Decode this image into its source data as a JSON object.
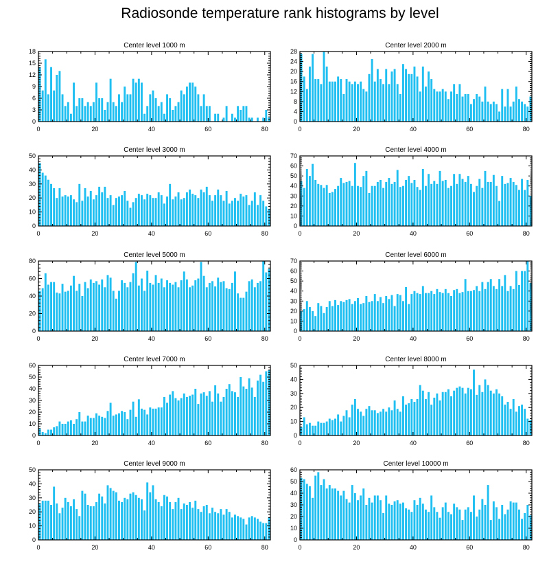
{
  "title": "Radiosonde temperature rank histograms by level",
  "colors": {
    "bar": "#1fbff2",
    "bar_edge": "#0e9fd6",
    "axis": "#000000"
  },
  "chart_data": [
    {
      "type": "bar",
      "title": "Center level 1000 m",
      "xlim": [
        0,
        82
      ],
      "ylim": [
        0,
        18
      ],
      "xticks": [
        0,
        20,
        40,
        60,
        80
      ],
      "yticks": [
        0,
        3,
        6,
        9,
        12,
        15,
        18
      ],
      "values": [
        14,
        8,
        16,
        7,
        14,
        8,
        12,
        13,
        7,
        4,
        5,
        2,
        10,
        4,
        6,
        6,
        4,
        5,
        4,
        5,
        10,
        6,
        6,
        3,
        5,
        11,
        5,
        4,
        7,
        5,
        9,
        7,
        7,
        11,
        10,
        11,
        10,
        2,
        4,
        7,
        8,
        6,
        4,
        5,
        2,
        7,
        6,
        3,
        4,
        5,
        8,
        7,
        9,
        10,
        10,
        9,
        7,
        4,
        7,
        4,
        4,
        0,
        2,
        2,
        0,
        1,
        4,
        0,
        2,
        1,
        4,
        3,
        4,
        4,
        1,
        1,
        0,
        1,
        0,
        1,
        3,
        1
      ]
    },
    {
      "type": "bar",
      "title": "Center level 2000 m",
      "xlim": [
        0,
        82
      ],
      "ylim": [
        0,
        28
      ],
      "xticks": [
        0,
        20,
        40,
        60,
        80
      ],
      "yticks": [
        0,
        4,
        8,
        12,
        16,
        20,
        24,
        28
      ],
      "values": [
        27,
        18,
        13,
        22,
        27,
        17,
        17,
        15,
        28,
        22,
        16,
        16,
        16,
        18,
        17,
        11,
        17,
        16,
        15,
        16,
        15,
        16,
        13,
        12,
        19,
        25,
        16,
        21,
        17,
        15,
        21,
        15,
        20,
        21,
        15,
        11,
        23,
        21,
        19,
        19,
        22,
        18,
        12,
        22,
        14,
        20,
        17,
        13,
        12,
        12,
        13,
        12,
        9,
        12,
        15,
        11,
        15,
        10,
        11,
        11,
        7,
        9,
        11,
        10,
        8,
        14,
        8,
        7,
        8,
        7,
        4,
        13,
        6,
        13,
        6,
        8,
        14,
        9,
        8,
        7,
        6,
        10
      ]
    },
    {
      "type": "bar",
      "title": "Center level 3000 m",
      "xlim": [
        0,
        82
      ],
      "ylim": [
        0,
        50
      ],
      "xticks": [
        0,
        20,
        40,
        60,
        80
      ],
      "yticks": [
        0,
        10,
        20,
        30,
        40,
        50
      ],
      "values": [
        45,
        38,
        36,
        33,
        30,
        27,
        20,
        27,
        21,
        22,
        21,
        22,
        19,
        17,
        30,
        18,
        27,
        21,
        25,
        19,
        22,
        28,
        24,
        28,
        20,
        22,
        15,
        20,
        21,
        22,
        25,
        18,
        13,
        17,
        20,
        23,
        22,
        19,
        23,
        22,
        20,
        20,
        24,
        22,
        16,
        21,
        30,
        19,
        21,
        24,
        19,
        20,
        24,
        26,
        23,
        22,
        20,
        26,
        24,
        28,
        22,
        18,
        22,
        26,
        22,
        18,
        25,
        16,
        18,
        20,
        18,
        23,
        21,
        22,
        15,
        18,
        24,
        15,
        22,
        18,
        14,
        12
      ]
    },
    {
      "type": "bar",
      "title": "Center level 4000 m",
      "xlim": [
        0,
        82
      ],
      "ylim": [
        0,
        70
      ],
      "xticks": [
        0,
        20,
        40,
        60,
        80
      ],
      "yticks": [
        0,
        10,
        20,
        30,
        40,
        50,
        60,
        70
      ],
      "values": [
        45,
        38,
        57,
        50,
        62,
        46,
        42,
        41,
        38,
        41,
        33,
        34,
        37,
        40,
        48,
        43,
        44,
        45,
        40,
        63,
        40,
        39,
        50,
        55,
        33,
        40,
        40,
        44,
        46,
        38,
        44,
        48,
        42,
        44,
        56,
        39,
        40,
        46,
        50,
        43,
        46,
        39,
        36,
        57,
        40,
        52,
        42,
        45,
        42,
        55,
        45,
        46,
        38,
        40,
        52,
        42,
        52,
        47,
        44,
        50,
        42,
        34,
        40,
        47,
        38,
        55,
        44,
        44,
        51,
        40,
        25,
        50,
        42,
        43,
        48,
        44,
        41,
        36,
        47,
        36,
        46,
        30
      ]
    },
    {
      "type": "bar",
      "title": "Center level 5000 m",
      "xlim": [
        0,
        82
      ],
      "ylim": [
        0,
        80
      ],
      "xticks": [
        0,
        20,
        40,
        60,
        80
      ],
      "yticks": [
        0,
        20,
        40,
        60,
        80
      ],
      "values": [
        46,
        49,
        66,
        53,
        56,
        56,
        44,
        43,
        54,
        45,
        46,
        52,
        63,
        46,
        54,
        40,
        56,
        49,
        59,
        55,
        57,
        53,
        59,
        50,
        64,
        61,
        46,
        37,
        46,
        58,
        55,
        50,
        56,
        66,
        79,
        52,
        60,
        46,
        69,
        55,
        53,
        64,
        55,
        60,
        50,
        58,
        55,
        53,
        56,
        50,
        58,
        68,
        59,
        50,
        52,
        58,
        60,
        79,
        63,
        50,
        55,
        57,
        51,
        61,
        56,
        57,
        49,
        48,
        55,
        68,
        43,
        38,
        38,
        45,
        57,
        59,
        50,
        55,
        57,
        80,
        67,
        71
      ]
    },
    {
      "type": "bar",
      "title": "Center level 6000 m",
      "xlim": [
        0,
        82
      ],
      "ylim": [
        0,
        70
      ],
      "xticks": [
        0,
        20,
        40,
        60,
        80
      ],
      "yticks": [
        0,
        10,
        20,
        30,
        40,
        50,
        60,
        70
      ],
      "values": [
        20,
        22,
        30,
        24,
        20,
        15,
        28,
        25,
        18,
        24,
        30,
        25,
        31,
        26,
        30,
        29,
        31,
        32,
        27,
        30,
        33,
        27,
        28,
        35,
        29,
        30,
        37,
        30,
        34,
        28,
        35,
        32,
        36,
        25,
        37,
        36,
        30,
        44,
        27,
        37,
        40,
        38,
        37,
        45,
        38,
        38,
        40,
        37,
        42,
        39,
        38,
        42,
        38,
        35,
        41,
        42,
        38,
        39,
        52,
        40,
        40,
        41,
        45,
        40,
        49,
        42,
        49,
        52,
        45,
        42,
        52,
        45,
        56,
        40,
        45,
        42,
        60,
        46,
        60,
        60,
        70,
        48
      ]
    },
    {
      "type": "bar",
      "title": "Center level 7000 m",
      "xlim": [
        0,
        82
      ],
      "ylim": [
        0,
        60
      ],
      "xticks": [
        0,
        20,
        40,
        60,
        80
      ],
      "yticks": [
        0,
        10,
        20,
        30,
        40,
        50,
        60
      ],
      "values": [
        6,
        3,
        2,
        5,
        5,
        7,
        8,
        12,
        10,
        10,
        12,
        13,
        10,
        14,
        20,
        12,
        12,
        17,
        15,
        15,
        19,
        17,
        16,
        15,
        21,
        28,
        17,
        18,
        19,
        21,
        20,
        14,
        22,
        29,
        16,
        31,
        23,
        22,
        18,
        24,
        23,
        23,
        24,
        24,
        33,
        28,
        35,
        38,
        32,
        30,
        32,
        36,
        33,
        34,
        35,
        40,
        27,
        36,
        37,
        34,
        38,
        29,
        43,
        36,
        29,
        33,
        40,
        44,
        38,
        37,
        33,
        50,
        42,
        40,
        49,
        41,
        33,
        47,
        52,
        46,
        55,
        56
      ]
    },
    {
      "type": "bar",
      "title": "Center level 8000 m",
      "xlim": [
        0,
        82
      ],
      "ylim": [
        0,
        50
      ],
      "xticks": [
        0,
        20,
        40,
        60,
        80
      ],
      "yticks": [
        0,
        10,
        20,
        30,
        40,
        50
      ],
      "values": [
        6,
        13,
        8,
        9,
        7,
        7,
        10,
        9,
        9,
        10,
        12,
        11,
        12,
        15,
        10,
        14,
        18,
        13,
        22,
        26,
        19,
        17,
        14,
        19,
        21,
        18,
        18,
        16,
        17,
        19,
        17,
        20,
        18,
        25,
        19,
        17,
        28,
        22,
        23,
        26,
        24,
        26,
        36,
        32,
        26,
        31,
        22,
        27,
        30,
        25,
        31,
        31,
        33,
        28,
        32,
        34,
        35,
        34,
        30,
        34,
        33,
        47,
        29,
        36,
        31,
        40,
        36,
        32,
        30,
        33,
        30,
        28,
        22,
        24,
        19,
        26,
        17,
        21,
        22,
        19,
        12,
        11
      ]
    },
    {
      "type": "bar",
      "title": "Center level 9000 m",
      "xlim": [
        0,
        82
      ],
      "ylim": [
        0,
        50
      ],
      "xticks": [
        0,
        20,
        40,
        60,
        80
      ],
      "yticks": [
        0,
        10,
        20,
        30,
        40,
        50
      ],
      "values": [
        26,
        28,
        28,
        28,
        25,
        38,
        26,
        19,
        23,
        30,
        27,
        24,
        29,
        22,
        17,
        35,
        33,
        25,
        24,
        24,
        27,
        33,
        31,
        26,
        39,
        37,
        35,
        34,
        28,
        27,
        30,
        29,
        33,
        34,
        32,
        30,
        29,
        21,
        41,
        34,
        39,
        29,
        27,
        24,
        32,
        31,
        27,
        22,
        27,
        30,
        22,
        26,
        25,
        27,
        23,
        28,
        22,
        20,
        24,
        25,
        19,
        23,
        20,
        19,
        22,
        18,
        22,
        20,
        16,
        18,
        17,
        16,
        15,
        11,
        16,
        17,
        16,
        15,
        13,
        12,
        12,
        16
      ]
    },
    {
      "type": "bar",
      "title": "Center level 10000 m",
      "xlim": [
        0,
        82
      ],
      "ylim": [
        0,
        60
      ],
      "xticks": [
        0,
        20,
        40,
        60,
        80
      ],
      "yticks": [
        0,
        10,
        20,
        30,
        40,
        50,
        60
      ],
      "values": [
        53,
        52,
        48,
        46,
        36,
        55,
        58,
        47,
        52,
        44,
        47,
        44,
        44,
        42,
        38,
        42,
        35,
        32,
        47,
        40,
        34,
        38,
        44,
        30,
        36,
        32,
        38,
        38,
        34,
        23,
        38,
        31,
        30,
        33,
        34,
        31,
        32,
        27,
        26,
        24,
        34,
        30,
        36,
        31,
        26,
        24,
        38,
        28,
        24,
        19,
        28,
        32,
        24,
        22,
        31,
        28,
        26,
        17,
        26,
        28,
        24,
        38,
        20,
        26,
        35,
        30,
        47,
        17,
        33,
        28,
        18,
        30,
        22,
        26,
        33,
        32,
        32,
        26,
        18,
        23,
        30,
        21
      ]
    }
  ]
}
